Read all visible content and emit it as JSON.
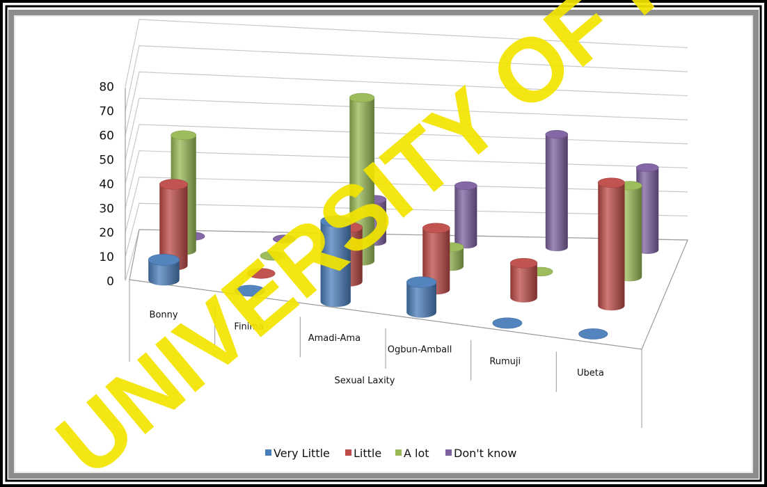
{
  "watermark": "UNIVERSITY OF IBADAN",
  "chart_data": {
    "type": "bar",
    "style": "3d-cylinder",
    "title": "",
    "xlabel": "Sexual Laxity",
    "ylabel": "",
    "ylim": [
      0,
      80
    ],
    "yticks": [
      "0",
      "10",
      "20",
      "30",
      "40",
      "50",
      "60",
      "70",
      "80"
    ],
    "categories": [
      "Bonny",
      "Finima",
      "Amadi-Ama",
      "Ogbun-Amball",
      "Rumuji",
      "Ubeta"
    ],
    "series": [
      {
        "name": "Very Little",
        "color": "#4a7ebb",
        "values": [
          8,
          0,
          32,
          12,
          0,
          0
        ]
      },
      {
        "name": "Little",
        "color": "#be4b48",
        "values": [
          33,
          0,
          22,
          25,
          14,
          50
        ]
      },
      {
        "name": "A lot",
        "color": "#98b954",
        "values": [
          48,
          0,
          68,
          8,
          0,
          38
        ]
      },
      {
        "name": "Don't know",
        "color": "#7d60a0",
        "values": [
          0,
          0,
          18,
          25,
          48,
          35
        ]
      }
    ],
    "grid": true,
    "legend_position": "bottom"
  }
}
